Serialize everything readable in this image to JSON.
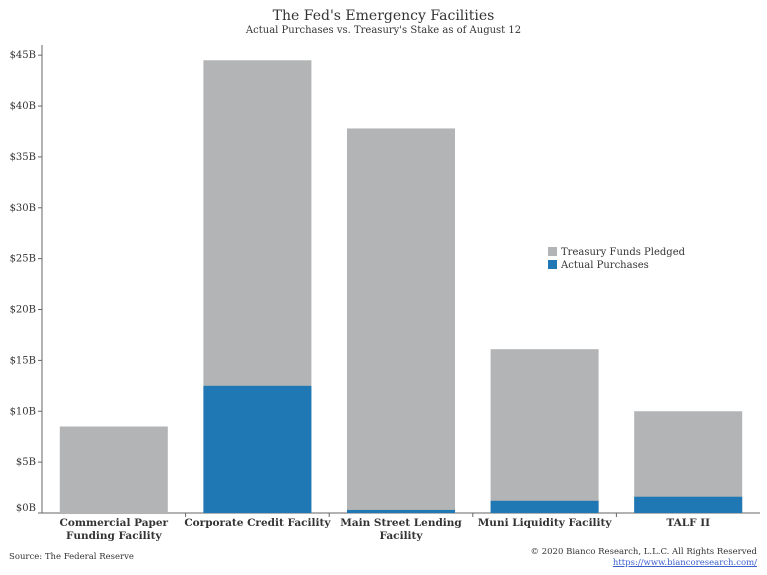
{
  "chart_data": {
    "type": "bar",
    "stacked": false,
    "title": "The Fed's Emergency Facilities",
    "subtitle": "Actual Purchases vs. Treasury's Stake as of August 12",
    "categories": [
      "Commercial Paper Funding Facility",
      "Corporate Credit Facility",
      "Main Street Lending Facility",
      "Muni Liquidity Facility",
      "TALF II"
    ],
    "category_lines": [
      [
        "Commercial Paper",
        "Funding Facility"
      ],
      [
        "Corporate Credit Facility"
      ],
      [
        "Main Street Lending",
        "Facility"
      ],
      [
        "Muni Liquidity Facility"
      ],
      [
        "TALF II"
      ]
    ],
    "series": [
      {
        "name": "Treasury Funds Pledged",
        "values": [
          8.5,
          44.5,
          37.8,
          16.1,
          10.0
        ],
        "color": "#b2b4b5"
      },
      {
        "name": "Actual Purchases",
        "values": [
          0,
          12.5,
          0.3,
          1.2,
          1.6
        ],
        "color": "#1f77b4"
      }
    ],
    "overlay": true,
    "ylim": [
      0,
      46
    ],
    "yticks": [
      0,
      5,
      10,
      15,
      20,
      25,
      30,
      35,
      40,
      45
    ],
    "ytick_labels": [
      "$0B",
      "$5B",
      "$10B",
      "$15B",
      "$20B",
      "$25B",
      "$30B",
      "$35B",
      "$40B",
      "$45B"
    ],
    "xlabel": "",
    "ylabel": "",
    "grid": false,
    "legend_position": "center-right"
  },
  "footer": {
    "source": "Source: The Federal Reserve",
    "copyright": "© 2020 Bianco Research, L.L.C. All Rights Reserved",
    "website": "https://www.biancoresearch.com/"
  }
}
